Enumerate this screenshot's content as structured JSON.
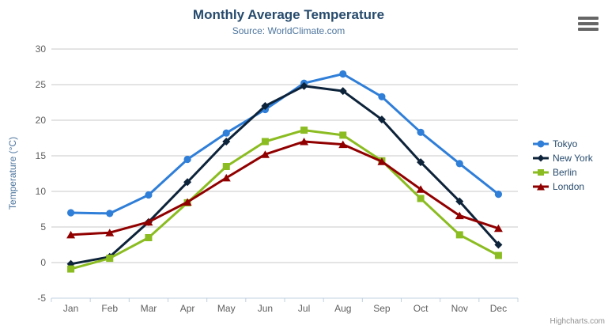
{
  "chart": {
    "title": "Monthly Average Temperature",
    "subtitle": "Source: WorldClimate.com",
    "y_axis_title": "Temperature (°C)",
    "credit": "Highcharts.com",
    "menu_button_icon": "hamburger-icon",
    "colors": {
      "background": "#ffffff",
      "title": "#274b6d",
      "subtitle": "#4d759e",
      "axis_title": "#4d759e",
      "axis_labels": "#606060",
      "gridline": "#c8c8c8",
      "axis_line": "#c0d0e0",
      "legend_text": "#274b6d",
      "credit_text": "#909090",
      "menu_icon": "#666666"
    }
  },
  "chart_data": {
    "type": "line",
    "title": "Monthly Average Temperature",
    "subtitle": "Source: WorldClimate.com",
    "xlabel": "",
    "ylabel": "Temperature (°C)",
    "categories": [
      "Jan",
      "Feb",
      "Mar",
      "Apr",
      "May",
      "Jun",
      "Jul",
      "Aug",
      "Sep",
      "Oct",
      "Nov",
      "Dec"
    ],
    "ylim": [
      -5,
      30
    ],
    "yticks": [
      -5,
      0,
      5,
      10,
      15,
      20,
      25,
      30
    ],
    "grid": true,
    "legend_position": "right",
    "series": [
      {
        "name": "Tokyo",
        "color": "#2f7ed8",
        "marker": "circle",
        "values": [
          7.0,
          6.9,
          9.5,
          14.5,
          18.2,
          21.5,
          25.2,
          26.5,
          23.3,
          18.3,
          13.9,
          9.6
        ]
      },
      {
        "name": "New York",
        "color": "#0d233a",
        "marker": "diamond",
        "values": [
          -0.2,
          0.8,
          5.7,
          11.3,
          17.0,
          22.0,
          24.8,
          24.1,
          20.1,
          14.1,
          8.6,
          2.5
        ]
      },
      {
        "name": "Berlin",
        "color": "#8bbc21",
        "marker": "square",
        "values": [
          -0.9,
          0.6,
          3.5,
          8.4,
          13.5,
          17.0,
          18.6,
          17.9,
          14.3,
          9.0,
          3.9,
          1.0
        ]
      },
      {
        "name": "London",
        "color": "#910000",
        "marker": "triangle",
        "values": [
          3.9,
          4.2,
          5.7,
          8.5,
          11.9,
          15.2,
          17.0,
          16.6,
          14.2,
          10.3,
          6.6,
          4.8
        ]
      }
    ]
  }
}
